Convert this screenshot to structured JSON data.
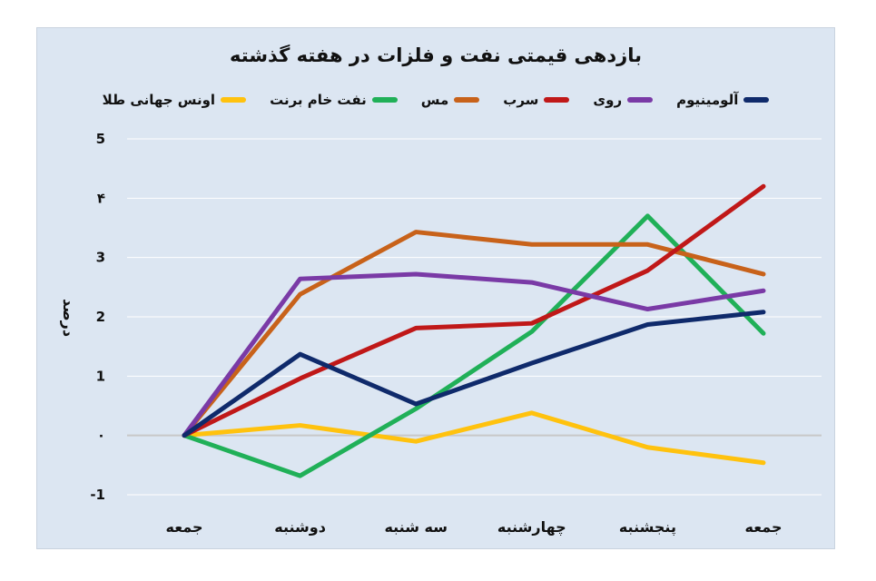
{
  "chart_data": {
    "type": "line",
    "title": "بازدهی قیمتی نفت و فلزات در هفته گذشته",
    "ylabel": "درصد",
    "xlabel": "",
    "categories": [
      "جمعه",
      "دوشنبه",
      "سه شنبه",
      "چهارشنبه",
      "پنجشنبه",
      "جمعه"
    ],
    "ylim": [
      -1,
      5
    ],
    "yticks": [
      "-1",
      "۰",
      "1",
      "2",
      "3",
      "۴",
      "5"
    ],
    "grid": true,
    "legend_position": "top",
    "series": [
      {
        "name": "آلومینیوم",
        "color": "#0f2a6b",
        "values": [
          0,
          1.37,
          0.53,
          1.22,
          1.87,
          2.08
        ]
      },
      {
        "name": "روی",
        "color": "#7a3aa6",
        "values": [
          0,
          2.64,
          2.72,
          2.58,
          2.13,
          2.44
        ]
      },
      {
        "name": "سرب",
        "color": "#c01818",
        "values": [
          0,
          0.96,
          1.81,
          1.89,
          2.78,
          4.2
        ]
      },
      {
        "name": "مس",
        "color": "#c8621a",
        "values": [
          0,
          2.38,
          3.43,
          3.22,
          3.22,
          2.72
        ]
      },
      {
        "name": "نفت خام برنت",
        "color": "#20b058",
        "values": [
          0,
          -0.68,
          0.45,
          1.75,
          3.7,
          1.72
        ]
      },
      {
        "name": "اونس جهانی طلا",
        "color": "#ffc20e",
        "values": [
          0,
          0.17,
          -0.1,
          0.38,
          -0.2,
          -0.46
        ]
      }
    ]
  }
}
